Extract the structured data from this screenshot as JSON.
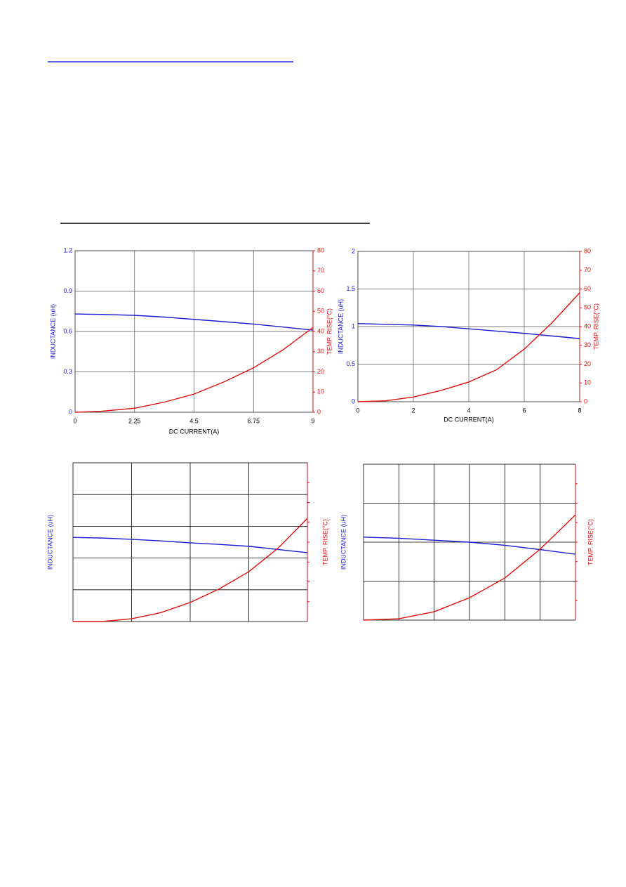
{
  "chart_data": [
    {
      "type": "line",
      "xlabel": "DC CURRENT(A)",
      "ylabel": "INDUCTANCE (uH)",
      "y2label": "TEMP. RISE(°C)",
      "x": [
        0,
        1,
        2.25,
        3.375,
        4.5,
        5.625,
        6.75,
        7.875,
        9
      ],
      "xlim": [
        0,
        9
      ],
      "xticks": [
        0,
        2.25,
        4.5,
        6.75,
        9
      ],
      "ylim": [
        0,
        1.2
      ],
      "yticks": [
        0,
        0.3,
        0.6,
        0.9,
        1.2
      ],
      "y2lim": [
        0,
        80
      ],
      "y2ticks": [
        0,
        10,
        20,
        30,
        40,
        50,
        60,
        70,
        80
      ],
      "grid": true,
      "series": [
        {
          "name": "INDUCTANCE (uH)",
          "color": "#1a1ad0",
          "values": [
            0.73,
            0.727,
            0.72,
            0.707,
            0.69,
            0.673,
            0.655,
            0.633,
            0.61
          ]
        },
        {
          "name": "TEMP. RISE(°C)",
          "color": "#dd1111",
          "axis": "y2",
          "values": [
            0,
            0.5,
            2,
            5,
            9,
            15,
            22,
            31,
            42
          ]
        }
      ]
    },
    {
      "type": "line",
      "xlabel": "DC CURRENT(A)",
      "ylabel": "INDUCTANCE (uH)",
      "y2label": "TEMP. RISE(°C)",
      "x": [
        0,
        1,
        2,
        3,
        4,
        5,
        6,
        7,
        8
      ],
      "xlim": [
        0,
        8
      ],
      "xticks": [
        0,
        2,
        4,
        6,
        8
      ],
      "ylim": [
        0,
        2
      ],
      "yticks": [
        0,
        0.5,
        1,
        1.5,
        2
      ],
      "y2lim": [
        0,
        80
      ],
      "y2ticks": [
        0,
        10,
        20,
        30,
        40,
        50,
        60,
        70,
        80
      ],
      "grid": true,
      "series": [
        {
          "name": "INDUCTANCE (uH)",
          "color": "#1a1ad0",
          "values": [
            1.04,
            1.03,
            1.02,
            1.0,
            0.97,
            0.94,
            0.91,
            0.875,
            0.84
          ]
        },
        {
          "name": "TEMP. RISE(°C)",
          "color": "#dd1111",
          "axis": "y2",
          "values": [
            0,
            0.5,
            2.5,
            6,
            10.5,
            17,
            28,
            42,
            58
          ]
        }
      ]
    },
    {
      "type": "line",
      "ylabel": "INDUCTANCE (uH)",
      "y2label": "TEMP. RISE(°C)",
      "x": [
        0,
        0.5,
        1,
        1.5,
        2,
        2.5,
        3,
        3.5,
        4
      ],
      "xlim": [
        0,
        4
      ],
      "xgrid": [
        1,
        2,
        3
      ],
      "ylim": [
        0,
        5
      ],
      "ygrid": [
        1,
        2,
        3,
        4
      ],
      "y2lim": [
        0,
        8
      ],
      "y2marks": [
        1,
        2,
        3,
        4,
        5,
        6,
        7
      ],
      "grid": true,
      "series": [
        {
          "name": "INDUCTANCE (uH)",
          "color": "#1a1ad0",
          "values": [
            2.65,
            2.63,
            2.59,
            2.54,
            2.48,
            2.43,
            2.37,
            2.27,
            2.17
          ]
        },
        {
          "name": "TEMP. RISE(°C)",
          "color": "#dd1111",
          "axis": "y2",
          "values": [
            0,
            0,
            0.14,
            0.45,
            0.96,
            1.65,
            2.51,
            3.7,
            5.2
          ]
        }
      ]
    },
    {
      "type": "line",
      "ylabel": "INDUCTANCE (uH)",
      "y2label": "TEMP. RISE(°C)",
      "x": [
        0,
        1,
        2,
        3,
        4,
        5,
        6
      ],
      "xlim": [
        0,
        6
      ],
      "xgrid": [
        1,
        2,
        3,
        4,
        5
      ],
      "ylim": [
        0,
        4
      ],
      "ygrid": [
        1,
        2,
        3
      ],
      "y2lim": [
        0,
        8
      ],
      "y2marks": [
        1,
        2,
        3,
        4,
        5,
        6,
        7
      ],
      "grid": true,
      "series": [
        {
          "name": "INDUCTANCE (uH)",
          "color": "#1a1ad0",
          "values": [
            2.13,
            2.1,
            2.05,
            2.0,
            1.92,
            1.81,
            1.69
          ]
        },
        {
          "name": "TEMP. RISE(°C)",
          "color": "#dd1111",
          "axis": "y2",
          "values": [
            0,
            0.07,
            0.43,
            1.15,
            2.16,
            3.64,
            5.4
          ]
        }
      ]
    }
  ]
}
